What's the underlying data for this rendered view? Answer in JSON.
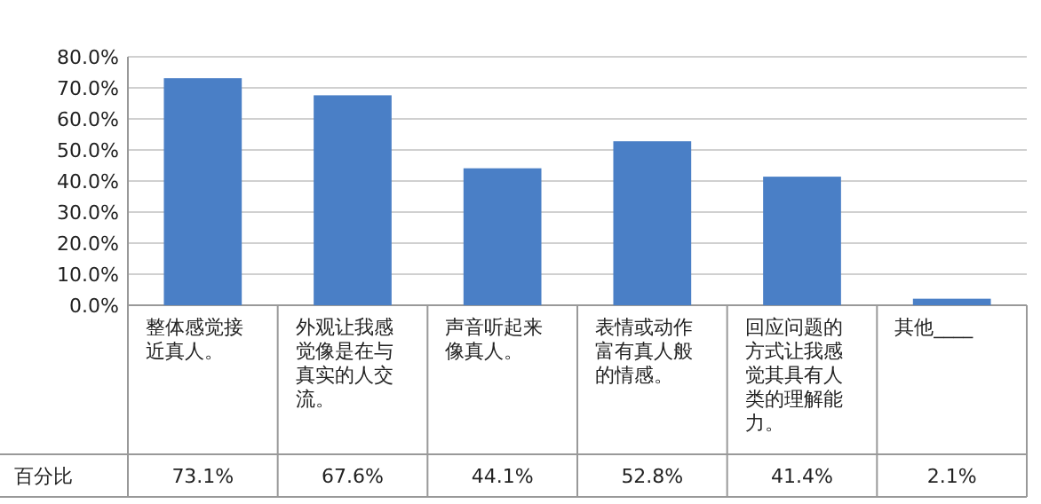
{
  "chart_data": {
    "type": "bar",
    "categories": [
      "整体感觉接近真人。",
      "外观让我感觉像是在与真实的人交流。",
      "声音听起来像真人。",
      "表情或动作富有真人般的情感。",
      "回应问题的方式让我感觉其具有人类的理解能力。",
      "其他____"
    ],
    "series": [
      {
        "name": "百分比",
        "color": "#4a7fc6",
        "values": [
          73.1,
          67.6,
          44.1,
          52.8,
          41.4,
          2.1
        ],
        "value_labels": [
          "73.1%",
          "67.6%",
          "44.1%",
          "52.8%",
          "41.4%",
          "2.1%"
        ]
      }
    ],
    "ylim": [
      0,
      80
    ],
    "yticks": [
      {
        "value": 0,
        "label": "0.0%"
      },
      {
        "value": 10,
        "label": "10.0%"
      },
      {
        "value": 20,
        "label": "20.0%"
      },
      {
        "value": 30,
        "label": "30.0%"
      },
      {
        "value": 40,
        "label": "40.0%"
      },
      {
        "value": 50,
        "label": "50.0%"
      },
      {
        "value": 60,
        "label": "60.0%"
      },
      {
        "value": 70,
        "label": "70.0%"
      },
      {
        "value": 80,
        "label": "80.0%"
      }
    ],
    "grid": "y"
  }
}
